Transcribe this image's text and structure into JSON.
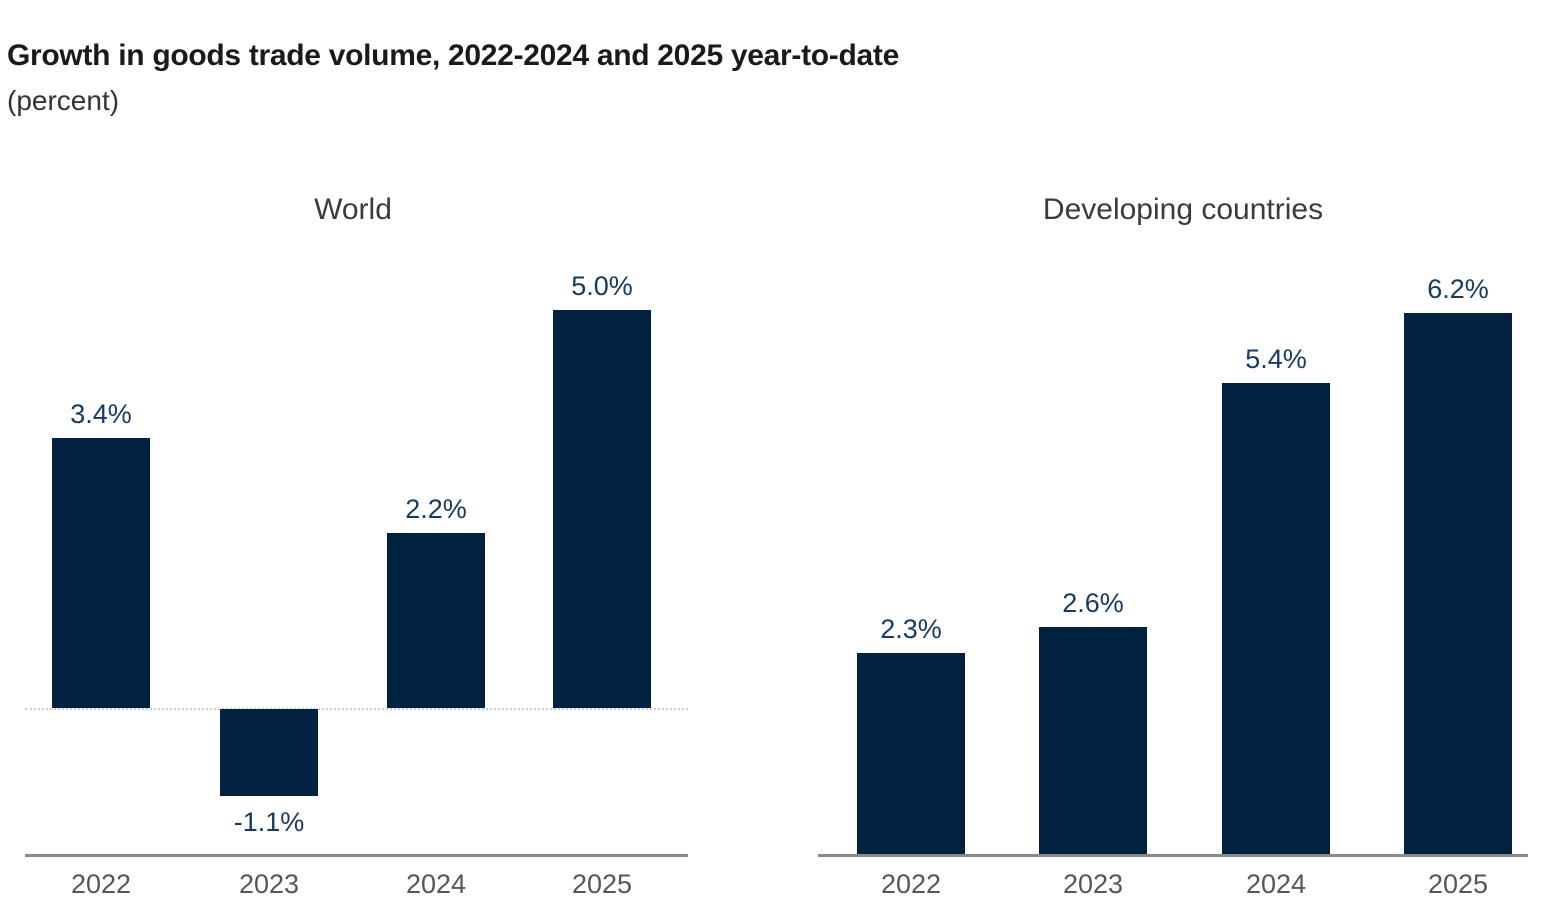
{
  "header": {
    "title": "Growth in goods trade volume, 2022-2024 and 2025 year-to-date",
    "subtitle": "(percent)"
  },
  "colors": {
    "background": "#ffffff",
    "bar": "#032242",
    "data_label": "#173a63",
    "chart_title": "#3b3b3b",
    "tick_label": "#565656",
    "axis_line": "#8a8a8a",
    "zero_line": "#cccccc",
    "main_title": "#1a1a1a",
    "subtitle": "#333333"
  },
  "chart_data": [
    {
      "type": "bar",
      "title": "World",
      "categories": [
        "2022",
        "2023",
        "2024",
        "2025"
      ],
      "values": [
        3.4,
        -1.1,
        2.2,
        5.0
      ],
      "value_labels": [
        "3.4%",
        "-1.1%",
        "2.2%",
        "5.0%"
      ],
      "unit": "percent",
      "ylim": [
        -1.85,
        6.3
      ],
      "grid": false,
      "legend": "none",
      "zero_line_style": "dotted",
      "bar_color": "#032242"
    },
    {
      "type": "bar",
      "title": "Developing countries",
      "categories": [
        "2022",
        "2023",
        "2024",
        "2025"
      ],
      "values": [
        2.3,
        2.6,
        5.4,
        6.2
      ],
      "value_labels": [
        "2.3%",
        "2.6%",
        "5.4%",
        "6.2%"
      ],
      "unit": "percent",
      "ylim": [
        0,
        7.0
      ],
      "grid": false,
      "legend": "none",
      "zero_line_style": "axis",
      "bar_color": "#032242"
    }
  ]
}
